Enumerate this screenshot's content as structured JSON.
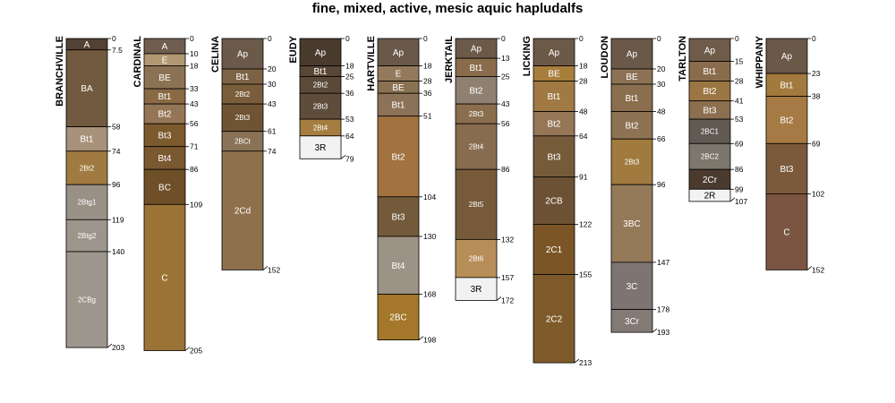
{
  "title": "fine, mixed, active, mesic aquic hapludalfs",
  "profiles": [
    {
      "name": "BRANCHVILLE",
      "horizons": [
        {
          "name": "A",
          "top": 0,
          "bottom": 7.5,
          "color": "#524135",
          "depth_label": "0"
        },
        {
          "name": "BA",
          "top": 7.5,
          "bottom": 58,
          "color": "#715a3f",
          "depth_label": "7.5"
        },
        {
          "name": "Bt1",
          "top": 58,
          "bottom": 74,
          "color": "#a8917a",
          "depth_label": "58"
        },
        {
          "name": "2Bt2",
          "top": 74,
          "bottom": 96,
          "color": "#a07a40",
          "depth_label": "74"
        },
        {
          "name": "2Btg1",
          "top": 96,
          "bottom": 119,
          "color": "#9a9186",
          "depth_label": "96"
        },
        {
          "name": "2Btg2",
          "top": 119,
          "bottom": 140,
          "color": "#9c958b",
          "depth_label": "119"
        },
        {
          "name": "2CBg",
          "top": 140,
          "bottom": 203,
          "color": "#9d968d",
          "depth_label": "140"
        }
      ],
      "bottom_label": "203"
    },
    {
      "name": "CARDINAL",
      "horizons": [
        {
          "name": "A",
          "top": 0,
          "bottom": 10,
          "color": "#6f5e4f",
          "depth_label": "0"
        },
        {
          "name": "E",
          "top": 10,
          "bottom": 18,
          "color": "#b19873",
          "depth_label": "10"
        },
        {
          "name": "BE",
          "top": 18,
          "bottom": 33,
          "color": "#8c7254",
          "depth_label": "18"
        },
        {
          "name": "Bt1",
          "top": 33,
          "bottom": 43,
          "color": "#8a6a44",
          "depth_label": "33"
        },
        {
          "name": "Bt2",
          "top": 43,
          "bottom": 56,
          "color": "#947656",
          "depth_label": "43"
        },
        {
          "name": "Bt3",
          "top": 56,
          "bottom": 71,
          "color": "#7c5a2d",
          "depth_label": "56"
        },
        {
          "name": "Bt4",
          "top": 71,
          "bottom": 86,
          "color": "#7a5830",
          "depth_label": "71"
        },
        {
          "name": "BC",
          "top": 86,
          "bottom": 109,
          "color": "#6e4f28",
          "depth_label": "86"
        },
        {
          "name": "C",
          "top": 109,
          "bottom": 205,
          "color": "#9b7337",
          "depth_label": "109"
        }
      ],
      "bottom_label": "205"
    },
    {
      "name": "CELINA",
      "horizons": [
        {
          "name": "Ap",
          "top": 0,
          "bottom": 20,
          "color": "#6b5a4a",
          "depth_label": "0"
        },
        {
          "name": "Bt1",
          "top": 20,
          "bottom": 30,
          "color": "#7d6345",
          "depth_label": "20"
        },
        {
          "name": "2Bt2",
          "top": 30,
          "bottom": 43,
          "color": "#7a5d3b",
          "depth_label": "30"
        },
        {
          "name": "2Bt3",
          "top": 43,
          "bottom": 61,
          "color": "#6f5434",
          "depth_label": "43"
        },
        {
          "name": "2BCt",
          "top": 61,
          "bottom": 74,
          "color": "#8a7256",
          "depth_label": "61"
        },
        {
          "name": "2Cd",
          "top": 74,
          "bottom": 152,
          "color": "#8e704c",
          "depth_label": "74"
        }
      ],
      "bottom_label": "152"
    },
    {
      "name": "EUDY",
      "horizons": [
        {
          "name": "Ap",
          "top": 0,
          "bottom": 18,
          "color": "#4a3b2f",
          "depth_label": "0"
        },
        {
          "name": "Bt1",
          "top": 18,
          "bottom": 25,
          "color": "#584636",
          "depth_label": "18"
        },
        {
          "name": "2Bt2",
          "top": 25,
          "bottom": 36,
          "color": "#5c4a38",
          "depth_label": "25"
        },
        {
          "name": "2Bt3",
          "top": 36,
          "bottom": 53,
          "color": "#5f4d3b",
          "depth_label": "36"
        },
        {
          "name": "2Bt4",
          "top": 53,
          "bottom": 64,
          "color": "#a57d3e",
          "depth_label": "53"
        },
        {
          "name": "3R",
          "top": 64,
          "bottom": 79,
          "color": "#f2f2f2",
          "depth_label": "64",
          "dark": true
        }
      ],
      "bottom_label": "79"
    },
    {
      "name": "HARTVILLE",
      "horizons": [
        {
          "name": "Ap",
          "top": 0,
          "bottom": 18,
          "color": "#6a5848",
          "depth_label": "0"
        },
        {
          "name": "E",
          "top": 18,
          "bottom": 28,
          "color": "#947a5c",
          "depth_label": "18"
        },
        {
          "name": "BE",
          "top": 28,
          "bottom": 36,
          "color": "#8a7152",
          "depth_label": "28"
        },
        {
          "name": "Bt1",
          "top": 36,
          "bottom": 51,
          "color": "#8c7258",
          "depth_label": "36"
        },
        {
          "name": "Bt2",
          "top": 51,
          "bottom": 104,
          "color": "#a2733f",
          "depth_label": "51"
        },
        {
          "name": "Bt3",
          "top": 104,
          "bottom": 130,
          "color": "#725a3a",
          "depth_label": "104"
        },
        {
          "name": "Bt4",
          "top": 130,
          "bottom": 168,
          "color": "#9c9286",
          "depth_label": "130"
        },
        {
          "name": "2BC",
          "top": 168,
          "bottom": 198,
          "color": "#a4772a",
          "depth_label": "168"
        }
      ],
      "bottom_label": "198"
    },
    {
      "name": "JERKTAIL",
      "horizons": [
        {
          "name": "Ap",
          "top": 0,
          "bottom": 13,
          "color": "#6c5a49",
          "depth_label": "0"
        },
        {
          "name": "Bt1",
          "top": 13,
          "bottom": 25,
          "color": "#8a6c4c",
          "depth_label": "13"
        },
        {
          "name": "Bt2",
          "top": 25,
          "bottom": 43,
          "color": "#8f8071",
          "depth_label": "25"
        },
        {
          "name": "2Bt3",
          "top": 43,
          "bottom": 56,
          "color": "#8b6e4d",
          "depth_label": "43"
        },
        {
          "name": "2Bt4",
          "top": 56,
          "bottom": 86,
          "color": "#876c4f",
          "depth_label": "56"
        },
        {
          "name": "2Bt5",
          "top": 86,
          "bottom": 132,
          "color": "#765a3a",
          "depth_label": "86"
        },
        {
          "name": "2Bt6",
          "top": 132,
          "bottom": 157,
          "color": "#b78e58",
          "depth_label": "132"
        },
        {
          "name": "3R",
          "top": 157,
          "bottom": 172,
          "color": "#f2f2f2",
          "depth_label": "157",
          "dark": true
        }
      ],
      "bottom_label": "172"
    },
    {
      "name": "LICKING",
      "horizons": [
        {
          "name": "Ap",
          "top": 0,
          "bottom": 18,
          "color": "#6c5a48",
          "depth_label": "0"
        },
        {
          "name": "BE",
          "top": 18,
          "bottom": 28,
          "color": "#a87e3c",
          "depth_label": "18"
        },
        {
          "name": "Bt1",
          "top": 28,
          "bottom": 48,
          "color": "#a07a42",
          "depth_label": "28"
        },
        {
          "name": "Bt2",
          "top": 48,
          "bottom": 64,
          "color": "#957656",
          "depth_label": "48"
        },
        {
          "name": "Bt3",
          "top": 64,
          "bottom": 91,
          "color": "#765b3b",
          "depth_label": "64"
        },
        {
          "name": "2CB",
          "top": 91,
          "bottom": 122,
          "color": "#6d5134",
          "depth_label": "91"
        },
        {
          "name": "2C1",
          "top": 122,
          "bottom": 155,
          "color": "#7b5526",
          "depth_label": "122"
        },
        {
          "name": "2C2",
          "top": 155,
          "bottom": 213,
          "color": "#7e5a2a",
          "depth_label": "155"
        }
      ],
      "bottom_label": "213"
    },
    {
      "name": "LOUDON",
      "horizons": [
        {
          "name": "Ap",
          "top": 0,
          "bottom": 20,
          "color": "#6a5848",
          "depth_label": "0"
        },
        {
          "name": "BE",
          "top": 20,
          "bottom": 30,
          "color": "#8c7254",
          "depth_label": "20"
        },
        {
          "name": "Bt1",
          "top": 30,
          "bottom": 48,
          "color": "#8a6e4e",
          "depth_label": "30"
        },
        {
          "name": "Bt2",
          "top": 48,
          "bottom": 66,
          "color": "#8d7253",
          "depth_label": "48"
        },
        {
          "name": "2Bt3",
          "top": 66,
          "bottom": 96,
          "color": "#a07a3f",
          "depth_label": "66"
        },
        {
          "name": "3BC",
          "top": 96,
          "bottom": 147,
          "color": "#957a59",
          "depth_label": "96"
        },
        {
          "name": "3C",
          "top": 147,
          "bottom": 178,
          "color": "#7e7572",
          "depth_label": "147"
        },
        {
          "name": "3Cr",
          "top": 178,
          "bottom": 193,
          "color": "#847a75",
          "depth_label": "178"
        }
      ],
      "bottom_label": "193"
    },
    {
      "name": "TARLTON",
      "horizons": [
        {
          "name": "Ap",
          "top": 0,
          "bottom": 15,
          "color": "#6e5b4a",
          "depth_label": "0"
        },
        {
          "name": "Bt1",
          "top": 15,
          "bottom": 28,
          "color": "#8a6c4c",
          "depth_label": "15"
        },
        {
          "name": "Bt2",
          "top": 28,
          "bottom": 41,
          "color": "#9b7642",
          "depth_label": "28"
        },
        {
          "name": "Bt3",
          "top": 41,
          "bottom": 53,
          "color": "#8c6f4f",
          "depth_label": "41"
        },
        {
          "name": "2BC1",
          "top": 53,
          "bottom": 69,
          "color": "#615a52",
          "depth_label": "53"
        },
        {
          "name": "2BC2",
          "top": 69,
          "bottom": 86,
          "color": "#7c766c",
          "depth_label": "69"
        },
        {
          "name": "2Cr",
          "top": 86,
          "bottom": 99,
          "color": "#4b3a2e",
          "depth_label": "86"
        },
        {
          "name": "2R",
          "top": 99,
          "bottom": 107,
          "color": "#f2f2f2",
          "depth_label": "99",
          "dark": true
        }
      ],
      "bottom_label": "107"
    },
    {
      "name": "WHIPPANY",
      "horizons": [
        {
          "name": "Ap",
          "top": 0,
          "bottom": 23,
          "color": "#6a5848",
          "depth_label": "0"
        },
        {
          "name": "Bt1",
          "top": 23,
          "bottom": 38,
          "color": "#a27a3e",
          "depth_label": "23"
        },
        {
          "name": "Bt2",
          "top": 38,
          "bottom": 69,
          "color": "#a67a45",
          "depth_label": "38"
        },
        {
          "name": "Bt3",
          "top": 69,
          "bottom": 102,
          "color": "#7b5a3c",
          "depth_label": "69"
        },
        {
          "name": "C",
          "top": 102,
          "bottom": 152,
          "color": "#7b5442",
          "depth_label": "102"
        }
      ],
      "bottom_label": "152"
    }
  ]
}
